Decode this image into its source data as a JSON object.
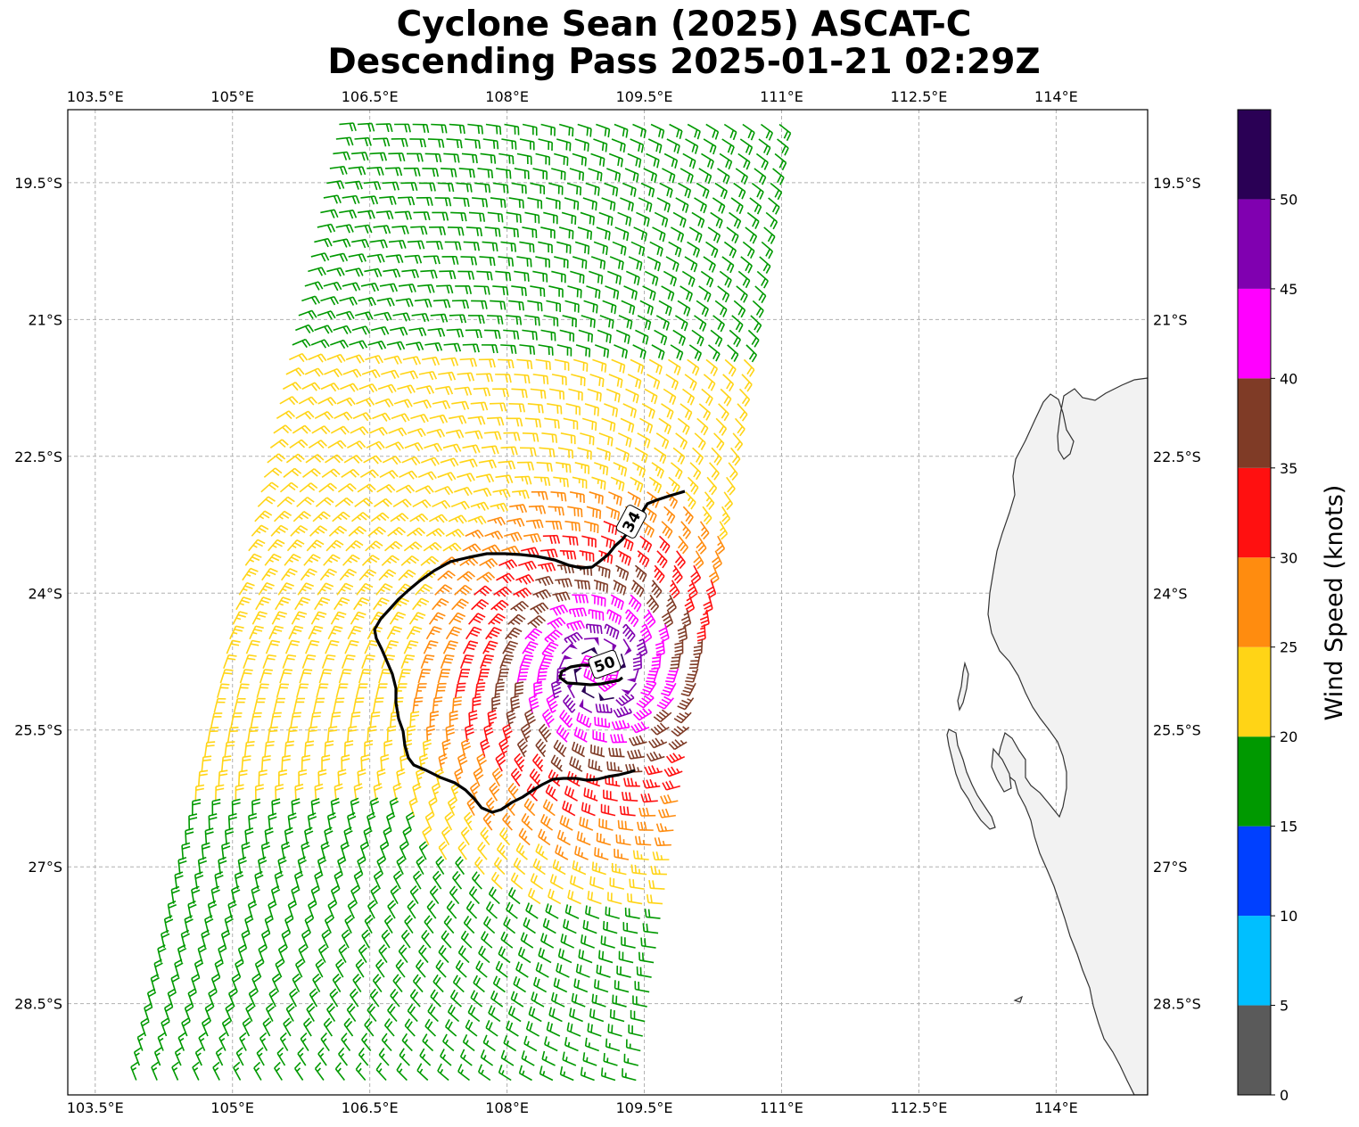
{
  "title": {
    "line1": "Cyclone Sean (2025) ASCAT-C",
    "line2": "Descending Pass 2025-01-21 02:29Z"
  },
  "map": {
    "lon_min": 103.2,
    "lon_max": 115.0,
    "lat_min": -29.5,
    "lat_max": -18.7,
    "lon_ticks": [
      103.5,
      105.0,
      106.5,
      108.0,
      109.5,
      111.0,
      112.5,
      114.0
    ],
    "lat_ticks": [
      -19.5,
      -21.0,
      -22.5,
      -24.0,
      -25.5,
      -27.0,
      -28.5
    ],
    "lon_tick_labels": [
      "103.5°E",
      "105°E",
      "106.5°E",
      "108°E",
      "109.5°E",
      "111°E",
      "112.5°E",
      "114°E"
    ],
    "lat_tick_labels": [
      "19.5°S",
      "21°S",
      "22.5°S",
      "24°S",
      "25.5°S",
      "27°S",
      "28.5°S"
    ],
    "gridlines": true
  },
  "storm": {
    "center_lon": 109.0,
    "center_lat": -24.85,
    "max_wind_kt": 52,
    "swath_left_edge_top": [
      106.1,
      -18.7
    ],
    "swath_left_edge_bottom": [
      103.8,
      -29.5
    ],
    "swath_right_edge_top": [
      111.1,
      -18.7
    ],
    "swath_right_edge_bottom": [
      109.5,
      -29.5
    ]
  },
  "contours": [
    {
      "level": 34,
      "label": "34"
    },
    {
      "level": 50,
      "label": "50"
    }
  ],
  "colorbar": {
    "label": "Wind Speed (knots)",
    "ticks": [
      "0",
      "5",
      "10",
      "15",
      "20",
      "25",
      "30",
      "35",
      "40",
      "45",
      "50"
    ],
    "bins": [
      {
        "from": 0,
        "to": 5,
        "color": "#5a5a5a"
      },
      {
        "from": 5,
        "to": 10,
        "color": "#00bfff"
      },
      {
        "from": 10,
        "to": 15,
        "color": "#0040ff"
      },
      {
        "from": 15,
        "to": 20,
        "color": "#009900"
      },
      {
        "from": 20,
        "to": 25,
        "color": "#ffd416"
      },
      {
        "from": 25,
        "to": 30,
        "color": "#ff8c0f"
      },
      {
        "from": 30,
        "to": 35,
        "color": "#ff1010"
      },
      {
        "from": 35,
        "to": 40,
        "color": "#7f3b26"
      },
      {
        "from": 40,
        "to": 45,
        "color": "#ff00ff"
      },
      {
        "from": 45,
        "to": 50,
        "color": "#8000b0"
      },
      {
        "from": 50,
        "to": 55,
        "color": "#2a0055"
      }
    ]
  },
  "colors": {
    "contour": "#000000",
    "coastline": "#333333",
    "land": "#f2f2f2",
    "grid": "#b0b0b0"
  }
}
